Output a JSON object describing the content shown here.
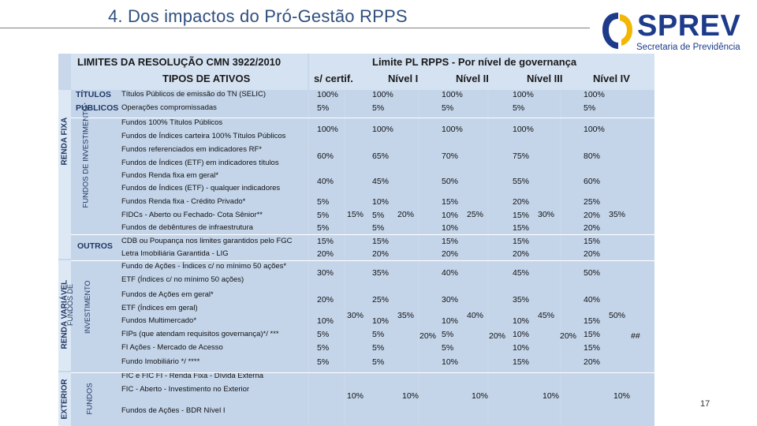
{
  "title": "4. Dos impactos do Pró-Gestão RPPS",
  "logo": {
    "name": "SPREV",
    "subtitle": "Secretaria de Previdência"
  },
  "slide_number": "17",
  "table": {
    "header_left_line1": "LIMITES DA RESOLUÇÃO CMN 3922/2010",
    "header_left_line2": "TIPOS DE ATIVOS",
    "header_right_line1": "Limite PL RPPS - Por nível de governança",
    "levels": [
      "s/ certif.",
      "Nível I",
      "Nível II",
      "Nível III",
      "Nível IV"
    ],
    "segments": [
      "RENDA FIXA",
      "RENDA VARIÁVEL",
      "EXTERIOR"
    ],
    "subsegments": [
      "FUNDOS DE INVESTIMENTO",
      "FUNDOS DE INVESTIMENTO",
      "FUNDOS"
    ],
    "groups": {
      "titulos_line1": "TÍTULOS",
      "titulos_line2": "PÚBLICOS",
      "outros": "OUTROS"
    },
    "assets": [
      "Títulos Públicos de emissão do TN (SELIC)",
      "Operações compromissadas",
      "Fundos 100% Títulos Públicos",
      "Fundos de Índices carteira 100% Títulos Públicos",
      "Fundos referenciados em indicadores RF*",
      "Fundos de Índices (ETF) em indicadores títulos",
      "Fundos Renda fixa em geral*",
      "Fundos de Índices (ETF) - qualquer indicadores",
      "Fundos Renda fixa - Crédito Privado*",
      "FIDCs - Aberto ou Fechado- Cota Sênior**",
      "Fundos de debêntures de infraestrutura",
      "CDB ou Poupança nos limites garantidos pelo FGC",
      "Letra Imobiliária Garantida - LIG",
      "Fundo de Ações - Índices c/ no mínimo 50 ações*",
      "ETF (Índices c/ no mínimo 50 ações)",
      "Fundos de Ações em geral*",
      "ETF (Índices em geral)",
      "Fundos Multimercado*",
      "FIPs (que atendam requisitos governança)*/ ***",
      "FI Ações - Mercado de Acesso",
      "Fundo Imobiliário */ ****",
      "FIC e FIC FI - Renda Fixa - Dívida Externa",
      "FIC - Aberto - Investimento no Exterior",
      "Fundos de Ações - BDR Nível I"
    ],
    "values": {
      "r1": [
        "100%",
        "100%",
        "100%",
        "100%",
        "100%"
      ],
      "r2": [
        "5%",
        "5%",
        "5%",
        "5%",
        "5%"
      ],
      "r3": [
        "100%",
        "100%",
        "100%",
        "100%",
        "100%"
      ],
      "r4": [
        "60%",
        "65%",
        "70%",
        "75%",
        "80%"
      ],
      "r5": [
        "40%",
        "45%",
        "50%",
        "55%",
        "60%"
      ],
      "r6": [
        "5%",
        "10%",
        "15%",
        "20%",
        "25%"
      ],
      "r7": [
        "5%",
        "5%",
        "10%",
        "15%",
        "20%"
      ],
      "r8": [
        "5%",
        "5%",
        "10%",
        "15%",
        "20%"
      ],
      "r9": [
        "15%",
        "15%",
        "15%",
        "15%",
        "15%"
      ],
      "r10": [
        "20%",
        "20%",
        "20%",
        "20%",
        "20%"
      ],
      "r11": [
        "30%",
        "35%",
        "40%",
        "45%",
        "50%"
      ],
      "r12": [
        "20%",
        "25%",
        "30%",
        "35%",
        "40%"
      ],
      "r13": [
        "10%",
        "10%",
        "10%",
        "10%",
        "15%"
      ],
      "r14": [
        "5%",
        "5%",
        "5%",
        "10%",
        "15%"
      ],
      "r15": [
        "5%",
        "5%",
        "5%",
        "10%",
        "15%"
      ],
      "r16": [
        "5%",
        "5%",
        "10%",
        "15%",
        "20%"
      ],
      "exterior": [
        "10%",
        "10%",
        "10%",
        "10%",
        "10%"
      ]
    },
    "combined_credit": [
      "15%",
      "20%",
      "25%",
      "30%",
      "35%"
    ],
    "combined_rv": [
      "30%",
      "35%",
      "40%",
      "45%",
      "50%"
    ],
    "combined_rv_small": [
      "20%",
      "20%",
      "20%"
    ],
    "extra_mark": "##"
  }
}
